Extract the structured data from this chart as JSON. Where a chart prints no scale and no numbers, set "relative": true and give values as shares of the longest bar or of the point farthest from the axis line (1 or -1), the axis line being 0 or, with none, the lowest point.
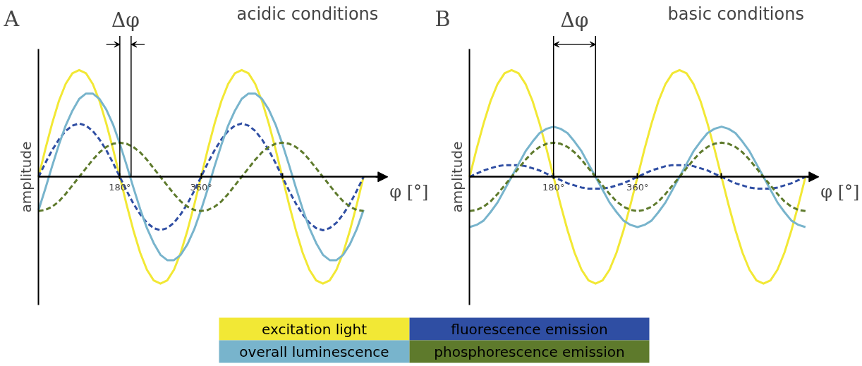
{
  "chart_data": [
    {
      "type": "line",
      "title": "acidic conditions",
      "xlabel": "φ [°]",
      "ylabel": "amplitude",
      "relative": true,
      "legend": "bottom",
      "grid": false,
      "annotations": [
        "A",
        "Δφ"
      ],
      "xlim": [
        0,
        770
      ],
      "xticks": [
        {
          "value": 180,
          "label": "180°"
        },
        {
          "value": 360,
          "label": "360°"
        },
        {
          "value": 540,
          "label": null
        }
      ],
      "ref_lines": [
        {
          "axis": "x",
          "value": 180,
          "label": null
        },
        {
          "axis": "x",
          "value": 205,
          "label": null
        }
      ],
      "x": [
        0,
        15,
        30,
        45,
        60,
        75,
        90,
        105,
        120,
        135,
        150,
        165,
        180,
        195,
        210,
        225,
        240,
        255,
        270,
        285,
        300,
        315,
        330,
        345,
        360,
        375,
        390,
        405,
        420,
        435,
        450,
        465,
        480,
        495,
        510,
        525,
        540,
        555,
        570,
        585,
        600,
        615,
        630,
        645,
        660,
        675,
        690,
        705,
        720
      ],
      "series": [
        {
          "name": "excitation light",
          "color": "#f2e835",
          "line_style": "solid",
          "values": [
            0,
            0.26,
            0.5,
            0.71,
            0.87,
            0.97,
            1,
            0.97,
            0.87,
            0.71,
            0.5,
            0.26,
            0,
            -0.26,
            -0.5,
            -0.71,
            -0.87,
            -0.97,
            -1,
            -0.97,
            -0.87,
            -0.71,
            -0.5,
            -0.26,
            0,
            0.26,
            0.5,
            0.71,
            0.87,
            0.97,
            1,
            0.97,
            0.87,
            0.71,
            0.5,
            0.26,
            0,
            -0.26,
            -0.5,
            -0.71,
            -0.87,
            -0.97,
            -1,
            -0.97,
            -0.87,
            -0.71,
            -0.5,
            -0.26,
            0
          ]
        },
        {
          "name": "fluorescence emission",
          "color": "#2f4ea3",
          "line_style": "dashed",
          "values": [
            0,
            0.13,
            0.25,
            0.35,
            0.43,
            0.48,
            0.5,
            0.48,
            0.43,
            0.35,
            0.25,
            0.13,
            0,
            -0.13,
            -0.25,
            -0.35,
            -0.43,
            -0.48,
            -0.5,
            -0.48,
            -0.43,
            -0.35,
            -0.25,
            -0.13,
            0,
            0.13,
            0.25,
            0.35,
            0.43,
            0.48,
            0.5,
            0.48,
            0.43,
            0.35,
            0.25,
            0.13,
            0,
            -0.13,
            -0.25,
            -0.35,
            -0.43,
            -0.48,
            -0.5,
            -0.48,
            -0.43,
            -0.35,
            -0.25,
            -0.13,
            0
          ]
        },
        {
          "name": "overall luminescence",
          "color": "#78b4cc",
          "line_style": "solid",
          "values": [
            -0.31,
            -0.11,
            0.1,
            0.3,
            0.48,
            0.62,
            0.73,
            0.78,
            0.78,
            0.73,
            0.63,
            0.49,
            0.31,
            0.11,
            -0.1,
            -0.3,
            -0.48,
            -0.62,
            -0.73,
            -0.78,
            -0.78,
            -0.73,
            -0.63,
            -0.49,
            -0.31,
            -0.11,
            0.1,
            0.3,
            0.48,
            0.62,
            0.73,
            0.78,
            0.78,
            0.73,
            0.63,
            0.49,
            0.31,
            0.11,
            -0.1,
            -0.3,
            -0.48,
            -0.62,
            -0.73,
            -0.78,
            -0.78,
            -0.73,
            -0.63,
            -0.49,
            -0.31
          ]
        },
        {
          "name": "phosphorescence emission",
          "color": "#5e7a2c",
          "line_style": "dashed",
          "values": [
            -0.32,
            -0.31,
            -0.28,
            -0.23,
            -0.16,
            -0.08,
            0,
            0.08,
            0.16,
            0.23,
            0.28,
            0.31,
            0.32,
            0.31,
            0.28,
            0.23,
            0.16,
            0.08,
            0,
            -0.08,
            -0.16,
            -0.23,
            -0.28,
            -0.31,
            -0.32,
            -0.31,
            -0.28,
            -0.23,
            -0.16,
            -0.08,
            0,
            0.08,
            0.16,
            0.23,
            0.28,
            0.31,
            0.32,
            0.31,
            0.28,
            0.23,
            0.16,
            0.08,
            0,
            -0.08,
            -0.16,
            -0.23,
            -0.28,
            -0.31,
            -0.32
          ]
        }
      ]
    },
    {
      "type": "line",
      "title": "basic conditions",
      "xlabel": "φ [°]",
      "ylabel": "amplitude",
      "relative": true,
      "grid": false,
      "annotations": [
        "B",
        "Δφ"
      ],
      "xlim": [
        0,
        745
      ],
      "xticks": [
        {
          "value": 180,
          "label": "180°"
        },
        {
          "value": 360,
          "label": "360°"
        },
        {
          "value": 540,
          "label": null
        }
      ],
      "ref_lines": [
        {
          "axis": "x",
          "value": 180,
          "label": null
        },
        {
          "axis": "x",
          "value": 270,
          "label": null
        }
      ],
      "x": [
        0,
        15,
        30,
        45,
        60,
        75,
        90,
        105,
        120,
        135,
        150,
        165,
        180,
        195,
        210,
        225,
        240,
        255,
        270,
        285,
        300,
        315,
        330,
        345,
        360,
        375,
        390,
        405,
        420,
        435,
        450,
        465,
        480,
        495,
        510,
        525,
        540,
        555,
        570,
        585,
        600,
        615,
        630,
        645,
        660,
        675,
        690,
        705,
        720
      ],
      "series": [
        {
          "color": "#f2e835",
          "line_style": "solid",
          "values": [
            0,
            0.26,
            0.5,
            0.71,
            0.87,
            0.97,
            1,
            0.97,
            0.87,
            0.71,
            0.5,
            0.26,
            0,
            -0.26,
            -0.5,
            -0.71,
            -0.87,
            -0.97,
            -1,
            -0.97,
            -0.87,
            -0.71,
            -0.5,
            -0.26,
            0,
            0.26,
            0.5,
            0.71,
            0.87,
            0.97,
            1,
            0.97,
            0.87,
            0.71,
            0.5,
            0.26,
            0,
            -0.26,
            -0.5,
            -0.71,
            -0.87,
            -0.97,
            -1,
            -0.97,
            -0.87,
            -0.71,
            -0.5,
            -0.26,
            0
          ]
        },
        {
          "color": "#2f4ea3",
          "line_style": "dashed",
          "values": [
            0,
            0.03,
            0.06,
            0.08,
            0.1,
            0.11,
            0.11,
            0.11,
            0.1,
            0.08,
            0.06,
            0.03,
            0,
            -0.03,
            -0.06,
            -0.08,
            -0.1,
            -0.11,
            -0.11,
            -0.11,
            -0.1,
            -0.08,
            -0.06,
            -0.03,
            0,
            0.03,
            0.06,
            0.08,
            0.1,
            0.11,
            0.11,
            0.11,
            0.1,
            0.08,
            0.06,
            0.03,
            0,
            -0.03,
            -0.06,
            -0.08,
            -0.1,
            -0.11,
            -0.11,
            -0.11,
            -0.1,
            -0.08,
            -0.06,
            -0.03,
            0
          ]
        },
        {
          "color": "#78b4cc",
          "line_style": "solid",
          "values": [
            -0.47,
            -0.45,
            -0.41,
            -0.33,
            -0.24,
            -0.12,
            0,
            0.12,
            0.24,
            0.33,
            0.41,
            0.45,
            0.47,
            0.45,
            0.41,
            0.33,
            0.24,
            0.12,
            0,
            -0.12,
            -0.24,
            -0.33,
            -0.41,
            -0.45,
            -0.47,
            -0.45,
            -0.41,
            -0.33,
            -0.24,
            -0.12,
            0,
            0.12,
            0.24,
            0.33,
            0.41,
            0.45,
            0.47,
            0.45,
            0.41,
            0.33,
            0.24,
            0.12,
            0,
            -0.12,
            -0.24,
            -0.33,
            -0.41,
            -0.45,
            -0.47
          ]
        },
        {
          "color": "#5e7a2c",
          "line_style": "dashed",
          "values": [
            -0.32,
            -0.31,
            -0.28,
            -0.23,
            -0.16,
            -0.08,
            0,
            0.08,
            0.16,
            0.23,
            0.28,
            0.31,
            0.32,
            0.31,
            0.28,
            0.23,
            0.16,
            0.08,
            0,
            -0.08,
            -0.16,
            -0.23,
            -0.28,
            -0.31,
            -0.32,
            -0.31,
            -0.28,
            -0.23,
            -0.16,
            -0.08,
            0,
            0.08,
            0.16,
            0.23,
            0.28,
            0.31,
            0.32,
            0.31,
            0.28,
            0.23,
            0.16,
            0.08,
            0,
            -0.08,
            -0.16,
            -0.23,
            -0.28,
            -0.31,
            -0.32
          ]
        }
      ]
    }
  ]
}
